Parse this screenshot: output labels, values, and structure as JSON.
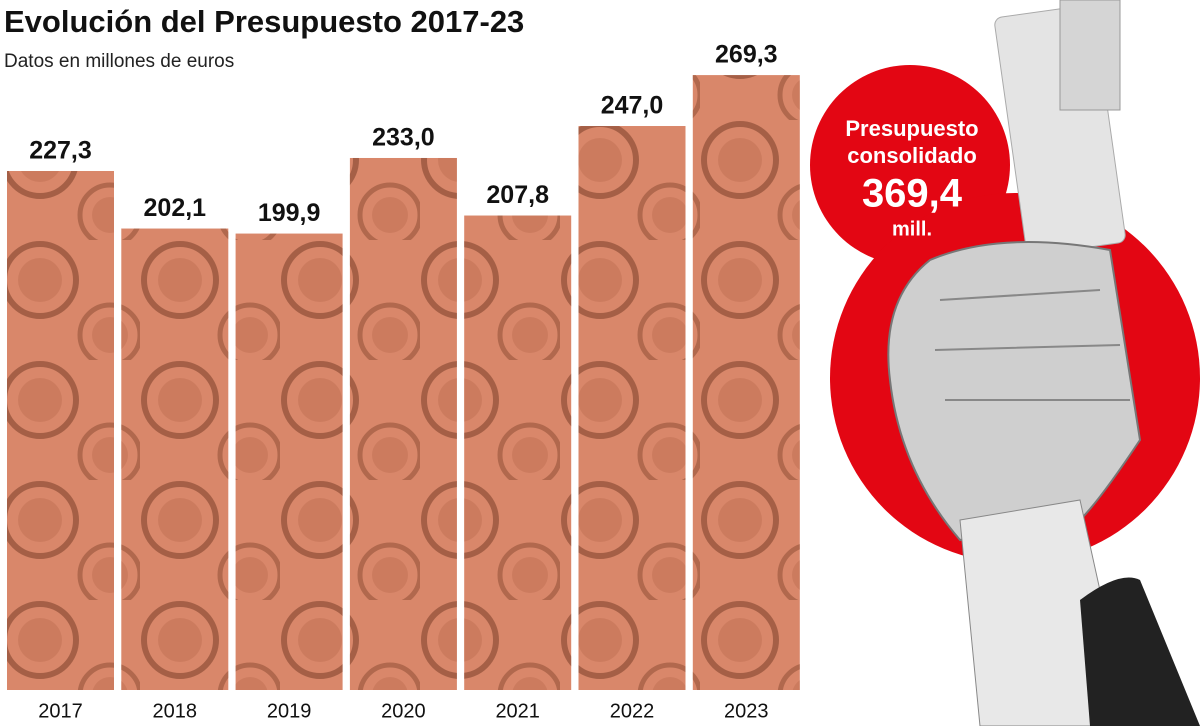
{
  "chart_data": {
    "type": "bar",
    "title": "Evolución del Presupuesto 2017-23",
    "subtitle": "Datos en millones de euros",
    "categories": [
      "2017",
      "2018",
      "2019",
      "2020",
      "2021",
      "2022",
      "2023"
    ],
    "values": [
      227.3,
      202.1,
      199.9,
      233.0,
      207.8,
      247.0,
      269.3
    ],
    "value_labels": [
      "227,3",
      "202,1",
      "199,9",
      "233,0",
      "207,8",
      "247,0",
      "269,3"
    ],
    "color": "#d9876a",
    "ylim": [
      0,
      300
    ],
    "annotation": {
      "line1": "Presupuesto",
      "line2": "consolidado",
      "value": "369,4",
      "unit": "mill."
    }
  }
}
